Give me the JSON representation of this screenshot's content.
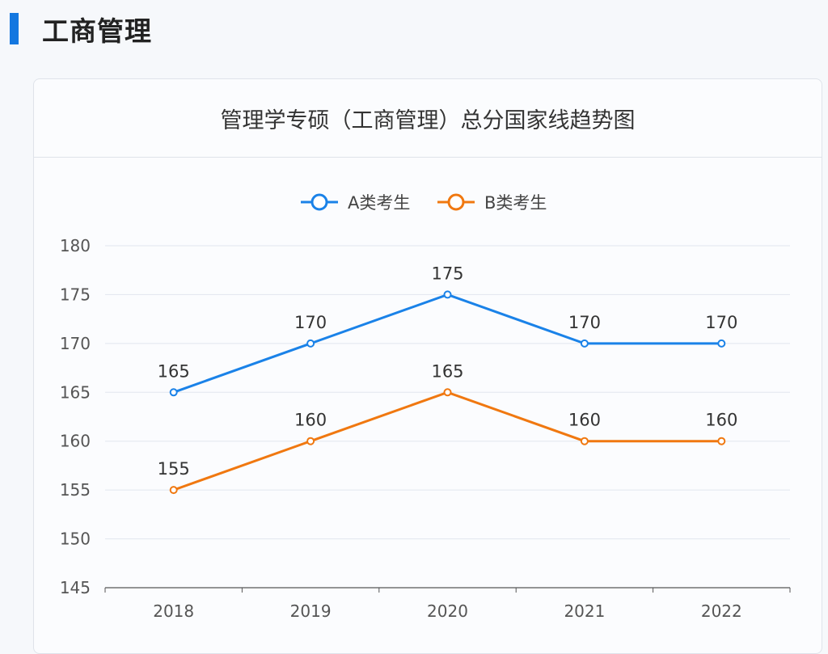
{
  "section_title": "工商管理",
  "colors": {
    "accent": "#1478e0",
    "series_a": "#1a82e8",
    "series_b": "#f07810"
  },
  "chart_data": {
    "type": "line",
    "title": "管理学专硕（工商管理）总分国家线趋势图",
    "categories": [
      "2018",
      "2019",
      "2020",
      "2021",
      "2022"
    ],
    "series": [
      {
        "name": "A类考生",
        "values": [
          165,
          170,
          175,
          170,
          170
        ],
        "color": "#1a82e8"
      },
      {
        "name": "B类考生",
        "values": [
          155,
          160,
          165,
          160,
          160
        ],
        "color": "#f07810"
      }
    ],
    "yticks": [
      145,
      150,
      155,
      160,
      165,
      170,
      175,
      180
    ],
    "ylim": [
      145,
      180
    ],
    "grid": true,
    "legend": "top",
    "data_labels": true
  }
}
